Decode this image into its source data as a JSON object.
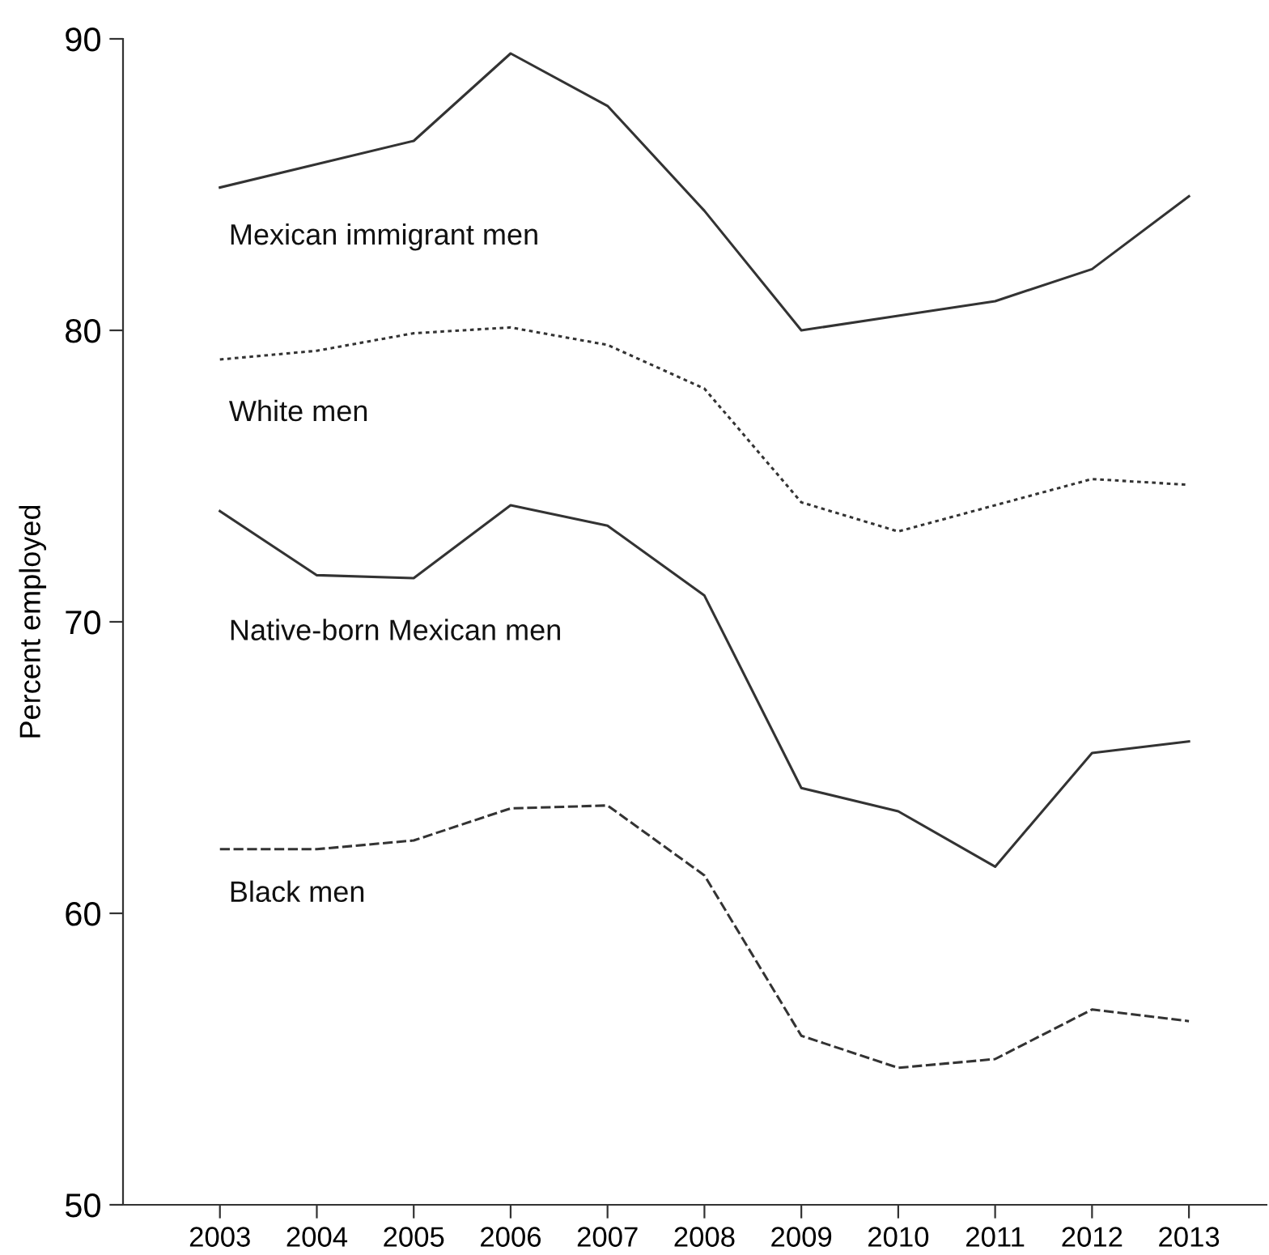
{
  "chart_data": {
    "type": "line",
    "ylabel": "Percent employed",
    "x": [
      2003,
      2004,
      2005,
      2006,
      2007,
      2008,
      2009,
      2010,
      2011,
      2012,
      2013
    ],
    "series": [
      {
        "name": "Mexican immigrant men",
        "color": "#333333",
        "line_style": "solid",
        "values": [
          84.9,
          85.7,
          86.5,
          89.5,
          87.7,
          84.1,
          80.0,
          80.5,
          81.0,
          82.1,
          84.6
        ]
      },
      {
        "name": "White men",
        "color": "#333333",
        "line_style": "dotted",
        "values": [
          79.0,
          79.3,
          79.9,
          80.1,
          79.5,
          78.0,
          74.1,
          73.1,
          74.0,
          74.9,
          74.7
        ]
      },
      {
        "name": "Native-born Mexican men",
        "color": "#333333",
        "line_style": "solid",
        "values": [
          73.8,
          71.6,
          71.5,
          74.0,
          73.3,
          70.9,
          64.3,
          63.5,
          61.6,
          65.5,
          65.9
        ]
      },
      {
        "name": "Black men",
        "color": "#333333",
        "line_style": "dashed",
        "values": [
          62.2,
          62.2,
          62.5,
          63.6,
          63.7,
          61.3,
          55.8,
          54.7,
          55.0,
          56.7,
          56.3
        ]
      }
    ],
    "xlim": [
      2002.0,
      2013.8
    ],
    "xticks": [
      2003,
      2004,
      2005,
      2006,
      2007,
      2008,
      2009,
      2010,
      2011,
      2012,
      2013
    ],
    "ylim": [
      50,
      90
    ],
    "yticks": [
      50,
      60,
      70,
      80,
      90
    ],
    "grid": false,
    "legend": false,
    "marker": "none"
  }
}
